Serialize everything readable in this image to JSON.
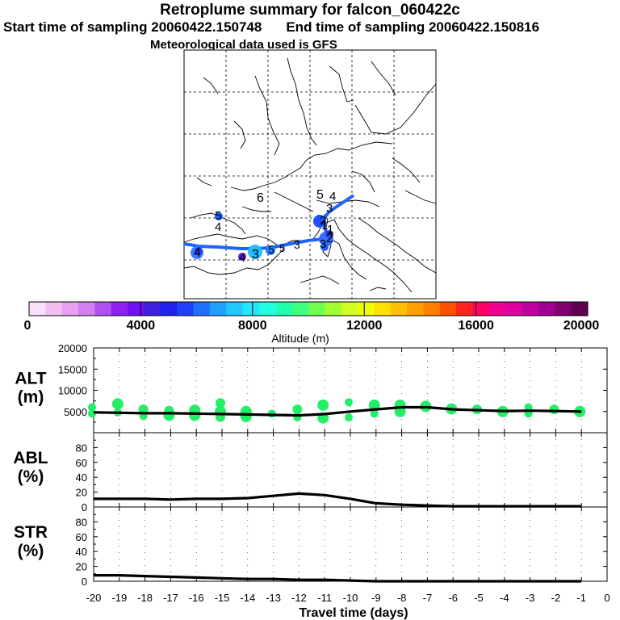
{
  "header": {
    "title": "Retroplume summary for falcon_060422c",
    "start_label": "Start time of sampling 20060422.150748",
    "end_label": "End time of sampling 20060422.150816",
    "met_label": "Meteorological data used is GFS"
  },
  "map": {
    "numbers": [
      "6",
      "5",
      "4",
      "3",
      "2",
      "1",
      "5",
      "4",
      "4",
      "3",
      "5",
      "3",
      "5",
      "4",
      "3",
      "2",
      "1"
    ],
    "track_color": "#1e64ff"
  },
  "colorbar": {
    "tick_labels": [
      "0",
      "4000",
      "8000",
      "12000",
      "16000",
      "20000"
    ],
    "title": "Altitude (m)",
    "colors": [
      "#f8e0f8",
      "#f0c0f0",
      "#e8a0f0",
      "#d080f0",
      "#b050f0",
      "#9020f0",
      "#7010f0",
      "#4020e0",
      "#2020f0",
      "#2040ff",
      "#2070ff",
      "#20a0ff",
      "#20c8ff",
      "#20e8ff",
      "#20ffe0",
      "#20ffb0",
      "#40ff80",
      "#70ff50",
      "#a0ff30",
      "#d0ff20",
      "#f0ff00",
      "#ffe000",
      "#ffc000",
      "#ffa000",
      "#ff8000",
      "#ff5000",
      "#ff2020",
      "#ff0060",
      "#f00090",
      "#e000a0",
      "#c000a0",
      "#a00090",
      "#800070",
      "#600050"
    ]
  },
  "chart_data": [
    {
      "type": "line",
      "name": "ALT",
      "ylabel": "ALT\n(m)",
      "ylabel_lines": [
        "ALT",
        "(m)"
      ],
      "ylim": [
        0,
        20000
      ],
      "yticks": [
        5000,
        10000,
        15000,
        20000
      ],
      "ytick_labels": [
        "5000",
        "10000",
        "15000",
        "20000"
      ],
      "x": [
        -20,
        -19,
        -18,
        -17,
        -16,
        -15,
        -14,
        -13,
        -12,
        -11,
        -10,
        -9,
        -8,
        -7,
        -6,
        -5,
        -4,
        -3,
        -2,
        -1
      ],
      "values": [
        4800,
        4700,
        4600,
        4600,
        4500,
        4400,
        4300,
        4200,
        4100,
        4400,
        5000,
        5500,
        6000,
        6000,
        5500,
        5300,
        5100,
        5200,
        5100,
        5000
      ],
      "scatter": [
        {
          "x": -20,
          "y": 6000
        },
        {
          "x": -20,
          "y": 4500
        },
        {
          "x": -19,
          "y": 6800
        },
        {
          "x": -19,
          "y": 4800
        },
        {
          "x": -18,
          "y": 5500
        },
        {
          "x": -18,
          "y": 3900
        },
        {
          "x": -17,
          "y": 5200
        },
        {
          "x": -17,
          "y": 4100
        },
        {
          "x": -16,
          "y": 5300
        },
        {
          "x": -16,
          "y": 4100
        },
        {
          "x": -15,
          "y": 5000
        },
        {
          "x": -15,
          "y": 3700
        },
        {
          "x": -15,
          "y": 7000
        },
        {
          "x": -14,
          "y": 5000
        },
        {
          "x": -14,
          "y": 3800
        },
        {
          "x": -13,
          "y": 4500
        },
        {
          "x": -12,
          "y": 5500
        },
        {
          "x": -12,
          "y": 3600
        },
        {
          "x": -11,
          "y": 6500
        },
        {
          "x": -11,
          "y": 3500
        },
        {
          "x": -10,
          "y": 7200
        },
        {
          "x": -10,
          "y": 3600
        },
        {
          "x": -9,
          "y": 6500
        },
        {
          "x": -9,
          "y": 4500
        },
        {
          "x": -8,
          "y": 6500
        },
        {
          "x": -8,
          "y": 5000
        },
        {
          "x": -7,
          "y": 6200
        },
        {
          "x": -6,
          "y": 5600
        },
        {
          "x": -5,
          "y": 5500
        },
        {
          "x": -4,
          "y": 5000
        },
        {
          "x": -3,
          "y": 6000
        },
        {
          "x": -3,
          "y": 4500
        },
        {
          "x": -2,
          "y": 5500
        },
        {
          "x": -1,
          "y": 5000
        }
      ],
      "scatter_color": "#22ee66"
    },
    {
      "type": "line",
      "name": "ABL",
      "ylabel": "ABL\n(%)",
      "ylabel_lines": [
        "ABL",
        "(%)"
      ],
      "ylim": [
        0,
        100
      ],
      "yticks": [
        0,
        20,
        40,
        60,
        80
      ],
      "ytick_labels": [
        "0",
        "20",
        "40",
        "60",
        "80"
      ],
      "x": [
        -20,
        -19,
        -18,
        -17,
        -16,
        -15,
        -14,
        -13,
        -12,
        -11,
        -10,
        -9,
        -8,
        -7,
        -6,
        -5,
        -4,
        -3,
        -2,
        -1
      ],
      "values": [
        11,
        11,
        11,
        10,
        11,
        11,
        12,
        15,
        18,
        16,
        11,
        5,
        3,
        2,
        1,
        1,
        1,
        1,
        1,
        1
      ]
    },
    {
      "type": "line",
      "name": "STR",
      "ylabel": "STR\n(%)",
      "ylabel_lines": [
        "STR",
        "(%)"
      ],
      "ylim": [
        0,
        100
      ],
      "yticks": [
        0,
        20,
        40,
        60,
        80
      ],
      "ytick_labels": [
        "0",
        "20",
        "40",
        "60",
        "80"
      ],
      "x": [
        -20,
        -19,
        -18,
        -17,
        -16,
        -15,
        -14,
        -13,
        -12,
        -11,
        -10,
        -9,
        -8,
        -7,
        -6,
        -5,
        -4,
        -3,
        -2,
        -1
      ],
      "values": [
        8,
        8,
        7,
        6,
        5,
        4,
        3,
        3,
        2,
        2,
        1,
        0,
        0,
        0,
        0,
        0,
        0,
        0,
        0,
        0
      ]
    }
  ],
  "xaxis": {
    "ticks": [
      -20,
      -19,
      -18,
      -17,
      -16,
      -15,
      -14,
      -13,
      -12,
      -11,
      -10,
      -9,
      -8,
      -7,
      -6,
      -5,
      -4,
      -3,
      -2,
      -1,
      0
    ],
    "tick_labels": [
      "-20",
      "-19",
      "-18",
      "-17",
      "-16",
      "-15",
      "-14",
      "-13",
      "-12",
      "-11",
      "-10",
      "-9",
      "-8",
      "-7",
      "-6",
      "-5",
      "-4",
      "-3",
      "-2",
      "-1",
      "0"
    ],
    "label": "Travel time (days)"
  }
}
